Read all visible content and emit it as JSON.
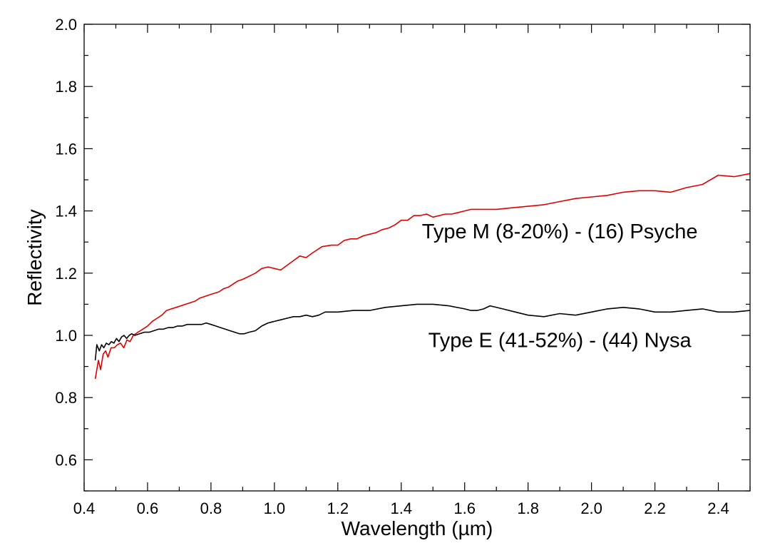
{
  "chart_data": {
    "type": "line",
    "xlabel": "Wavelength (µm)",
    "ylabel": "Reflectivity",
    "xlim": [
      0.4,
      2.5
    ],
    "ylim": [
      0.5,
      2.0
    ],
    "x_ticks": [
      "0.4",
      "0.6",
      "0.8",
      "1.0",
      "1.2",
      "1.4",
      "1.6",
      "1.8",
      "2.0",
      "2.2",
      "2.4"
    ],
    "y_ticks": [
      "0.6",
      "0.8",
      "1.0",
      "1.2",
      "1.4",
      "1.6",
      "1.8",
      "2.0"
    ],
    "grid": false,
    "legend": "none",
    "annotations": [
      {
        "text": "Type M (8-20%) - (16) Psyche",
        "x": 1.9,
        "y": 1.335
      },
      {
        "text": "Type E (41-52%) - (44) Nysa",
        "x": 1.9,
        "y": 0.985
      }
    ],
    "series": [
      {
        "color": "#e00000",
        "points": [
          [
            0.435,
            0.86
          ],
          [
            0.445,
            0.92
          ],
          [
            0.452,
            0.89
          ],
          [
            0.46,
            0.94
          ],
          [
            0.468,
            0.95
          ],
          [
            0.475,
            0.93
          ],
          [
            0.485,
            0.96
          ],
          [
            0.495,
            0.96
          ],
          [
            0.505,
            0.97
          ],
          [
            0.515,
            0.975
          ],
          [
            0.525,
            0.96
          ],
          [
            0.535,
            0.985
          ],
          [
            0.545,
            0.98
          ],
          [
            0.555,
            1.0
          ],
          [
            0.57,
            1.01
          ],
          [
            0.585,
            1.02
          ],
          [
            0.6,
            1.03
          ],
          [
            0.615,
            1.045
          ],
          [
            0.63,
            1.055
          ],
          [
            0.645,
            1.065
          ],
          [
            0.66,
            1.08
          ],
          [
            0.675,
            1.085
          ],
          [
            0.69,
            1.09
          ],
          [
            0.705,
            1.095
          ],
          [
            0.72,
            1.1
          ],
          [
            0.735,
            1.105
          ],
          [
            0.75,
            1.11
          ],
          [
            0.765,
            1.12
          ],
          [
            0.78,
            1.125
          ],
          [
            0.795,
            1.13
          ],
          [
            0.81,
            1.135
          ],
          [
            0.825,
            1.14
          ],
          [
            0.84,
            1.15
          ],
          [
            0.855,
            1.155
          ],
          [
            0.87,
            1.165
          ],
          [
            0.885,
            1.175
          ],
          [
            0.9,
            1.18
          ],
          [
            0.92,
            1.19
          ],
          [
            0.94,
            1.2
          ],
          [
            0.96,
            1.215
          ],
          [
            0.98,
            1.22
          ],
          [
            1.0,
            1.215
          ],
          [
            1.02,
            1.21
          ],
          [
            1.04,
            1.225
          ],
          [
            1.06,
            1.24
          ],
          [
            1.08,
            1.255
          ],
          [
            1.1,
            1.25
          ],
          [
            1.12,
            1.265
          ],
          [
            1.15,
            1.285
          ],
          [
            1.18,
            1.29
          ],
          [
            1.2,
            1.29
          ],
          [
            1.22,
            1.305
          ],
          [
            1.24,
            1.31
          ],
          [
            1.26,
            1.31
          ],
          [
            1.28,
            1.32
          ],
          [
            1.3,
            1.325
          ],
          [
            1.32,
            1.33
          ],
          [
            1.34,
            1.34
          ],
          [
            1.36,
            1.345
          ],
          [
            1.38,
            1.355
          ],
          [
            1.4,
            1.37
          ],
          [
            1.42,
            1.37
          ],
          [
            1.44,
            1.385
          ],
          [
            1.46,
            1.385
          ],
          [
            1.48,
            1.39
          ],
          [
            1.5,
            1.38
          ],
          [
            1.52,
            1.385
          ],
          [
            1.54,
            1.39
          ],
          [
            1.56,
            1.39
          ],
          [
            1.58,
            1.395
          ],
          [
            1.6,
            1.4
          ],
          [
            1.62,
            1.405
          ],
          [
            1.64,
            1.405
          ],
          [
            1.66,
            1.405
          ],
          [
            1.7,
            1.405
          ],
          [
            1.75,
            1.41
          ],
          [
            1.8,
            1.415
          ],
          [
            1.85,
            1.42
          ],
          [
            1.9,
            1.43
          ],
          [
            1.95,
            1.44
          ],
          [
            2.0,
            1.445
          ],
          [
            2.05,
            1.45
          ],
          [
            2.1,
            1.46
          ],
          [
            2.15,
            1.465
          ],
          [
            2.2,
            1.465
          ],
          [
            2.25,
            1.46
          ],
          [
            2.3,
            1.475
          ],
          [
            2.35,
            1.485
          ],
          [
            2.4,
            1.515
          ],
          [
            2.45,
            1.51
          ],
          [
            2.5,
            1.52
          ]
        ]
      },
      {
        "color": "#000000",
        "points": [
          [
            0.435,
            0.92
          ],
          [
            0.44,
            0.97
          ],
          [
            0.448,
            0.95
          ],
          [
            0.455,
            0.97
          ],
          [
            0.462,
            0.96
          ],
          [
            0.47,
            0.975
          ],
          [
            0.478,
            0.97
          ],
          [
            0.486,
            0.98
          ],
          [
            0.494,
            0.975
          ],
          [
            0.502,
            0.99
          ],
          [
            0.51,
            0.98
          ],
          [
            0.518,
            0.995
          ],
          [
            0.526,
            1.0
          ],
          [
            0.534,
            0.99
          ],
          [
            0.542,
            1.0
          ],
          [
            0.55,
            1.005
          ],
          [
            0.56,
            1.0
          ],
          [
            0.575,
            1.005
          ],
          [
            0.59,
            1.01
          ],
          [
            0.605,
            1.01
          ],
          [
            0.62,
            1.015
          ],
          [
            0.635,
            1.02
          ],
          [
            0.65,
            1.02
          ],
          [
            0.665,
            1.025
          ],
          [
            0.68,
            1.025
          ],
          [
            0.695,
            1.03
          ],
          [
            0.71,
            1.03
          ],
          [
            0.725,
            1.035
          ],
          [
            0.74,
            1.035
          ],
          [
            0.755,
            1.035
          ],
          [
            0.77,
            1.035
          ],
          [
            0.785,
            1.04
          ],
          [
            0.8,
            1.035
          ],
          [
            0.815,
            1.03
          ],
          [
            0.83,
            1.025
          ],
          [
            0.845,
            1.02
          ],
          [
            0.86,
            1.015
          ],
          [
            0.875,
            1.01
          ],
          [
            0.89,
            1.005
          ],
          [
            0.905,
            1.005
          ],
          [
            0.92,
            1.01
          ],
          [
            0.94,
            1.015
          ],
          [
            0.96,
            1.03
          ],
          [
            0.98,
            1.04
          ],
          [
            1.0,
            1.045
          ],
          [
            1.02,
            1.05
          ],
          [
            1.04,
            1.055
          ],
          [
            1.06,
            1.06
          ],
          [
            1.08,
            1.06
          ],
          [
            1.1,
            1.065
          ],
          [
            1.12,
            1.06
          ],
          [
            1.14,
            1.065
          ],
          [
            1.16,
            1.075
          ],
          [
            1.18,
            1.075
          ],
          [
            1.2,
            1.075
          ],
          [
            1.25,
            1.08
          ],
          [
            1.3,
            1.08
          ],
          [
            1.35,
            1.09
          ],
          [
            1.4,
            1.095
          ],
          [
            1.45,
            1.1
          ],
          [
            1.5,
            1.1
          ],
          [
            1.55,
            1.095
          ],
          [
            1.6,
            1.085
          ],
          [
            1.62,
            1.08
          ],
          [
            1.64,
            1.08
          ],
          [
            1.66,
            1.085
          ],
          [
            1.68,
            1.095
          ],
          [
            1.72,
            1.085
          ],
          [
            1.76,
            1.075
          ],
          [
            1.8,
            1.065
          ],
          [
            1.85,
            1.06
          ],
          [
            1.9,
            1.07
          ],
          [
            1.95,
            1.065
          ],
          [
            2.0,
            1.075
          ],
          [
            2.05,
            1.085
          ],
          [
            2.1,
            1.09
          ],
          [
            2.15,
            1.085
          ],
          [
            2.2,
            1.075
          ],
          [
            2.25,
            1.075
          ],
          [
            2.3,
            1.08
          ],
          [
            2.35,
            1.085
          ],
          [
            2.4,
            1.075
          ],
          [
            2.45,
            1.075
          ],
          [
            2.5,
            1.08
          ]
        ]
      }
    ]
  }
}
